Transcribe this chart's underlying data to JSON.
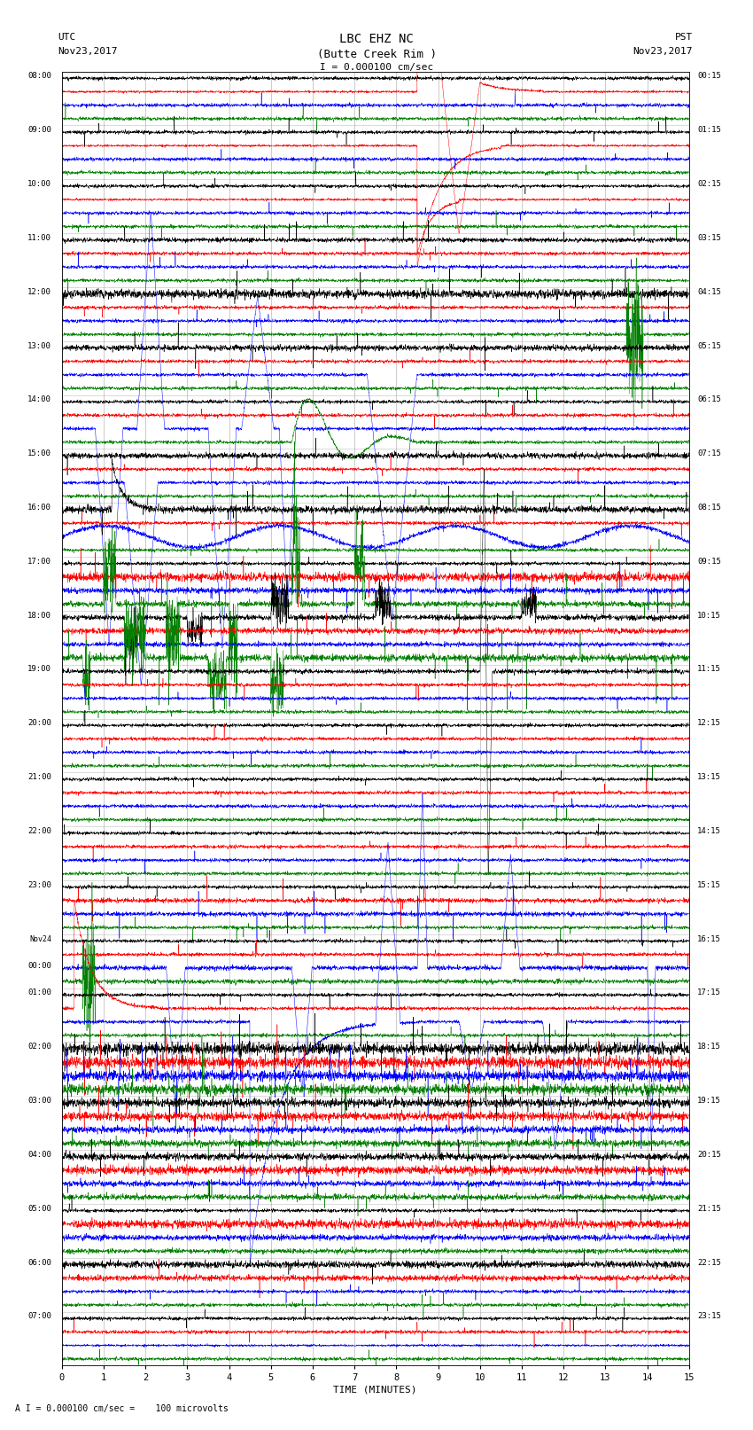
{
  "title_line1": "LBC EHZ NC",
  "title_line2": "(Butte Creek Rim )",
  "scale_label": "I = 0.000100 cm/sec",
  "left_header_line1": "UTC",
  "left_header_line2": "Nov23,2017",
  "right_header_line1": "PST",
  "right_header_line2": "Nov23,2017",
  "xlabel": "TIME (MINUTES)",
  "footnote": "A I = 0.000100 cm/sec =    100 microvolts",
  "bg_color": "#ffffff",
  "left_times": [
    "08:00",
    "09:00",
    "10:00",
    "11:00",
    "12:00",
    "13:00",
    "14:00",
    "15:00",
    "16:00",
    "17:00",
    "18:00",
    "19:00",
    "20:00",
    "21:00",
    "22:00",
    "23:00",
    "Nov24\n00:00",
    "01:00",
    "02:00",
    "03:00",
    "04:00",
    "05:00",
    "06:00",
    "07:00"
  ],
  "right_times": [
    "00:15",
    "01:15",
    "02:15",
    "03:15",
    "04:15",
    "05:15",
    "06:15",
    "07:15",
    "08:15",
    "09:15",
    "10:15",
    "11:15",
    "12:15",
    "13:15",
    "14:15",
    "15:15",
    "16:15",
    "17:15",
    "18:15",
    "19:15",
    "20:15",
    "21:15",
    "22:15",
    "23:15"
  ],
  "num_rows": 24,
  "traces_per_row": 4,
  "colors": [
    "black",
    "red",
    "blue",
    "green"
  ],
  "xmin": 0,
  "xmax": 15,
  "xticks": [
    0,
    1,
    2,
    3,
    4,
    5,
    6,
    7,
    8,
    9,
    10,
    11,
    12,
    13,
    14,
    15
  ],
  "figsize": [
    8.5,
    16.13
  ],
  "dpi": 100
}
